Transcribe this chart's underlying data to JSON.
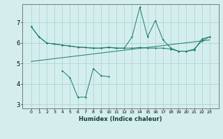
{
  "x": [
    0,
    1,
    2,
    3,
    4,
    5,
    6,
    7,
    8,
    9,
    10,
    11,
    12,
    13,
    14,
    15,
    16,
    17,
    18,
    19,
    20,
    21,
    22,
    23
  ],
  "line1": [
    6.8,
    6.3,
    6.0,
    5.95,
    5.9,
    5.85,
    5.8,
    5.78,
    5.75,
    5.75,
    5.8,
    5.75,
    5.75,
    6.3,
    7.75,
    6.3,
    7.1,
    6.15,
    5.75,
    5.6,
    5.6,
    5.65,
    6.2,
    6.3
  ],
  "line2": [
    6.8,
    6.3,
    6.0,
    5.95,
    5.9,
    5.85,
    5.8,
    5.78,
    5.75,
    5.75,
    5.78,
    5.75,
    5.75,
    5.75,
    5.78,
    5.75,
    5.75,
    5.75,
    5.7,
    5.6,
    5.6,
    5.7,
    6.1,
    6.3
  ],
  "line3_x": [
    0,
    23
  ],
  "line3_y": [
    5.1,
    6.15
  ],
  "line4_x": [
    4,
    5,
    6,
    7,
    8,
    9,
    10
  ],
  "line4_y": [
    4.65,
    4.3,
    3.35,
    3.35,
    4.75,
    4.4,
    4.35
  ],
  "bg_color": "#d4eeee",
  "grid_color": "#aacfcf",
  "line_color": "#1a7a6e",
  "xlabel": "Humidex (Indice chaleur)",
  "ylim": [
    2.8,
    7.9
  ],
  "yticks": [
    3,
    4,
    5,
    6,
    7
  ],
  "xticks": [
    0,
    1,
    2,
    3,
    4,
    5,
    6,
    7,
    8,
    9,
    10,
    11,
    12,
    13,
    14,
    15,
    16,
    17,
    18,
    19,
    20,
    21,
    22,
    23
  ]
}
